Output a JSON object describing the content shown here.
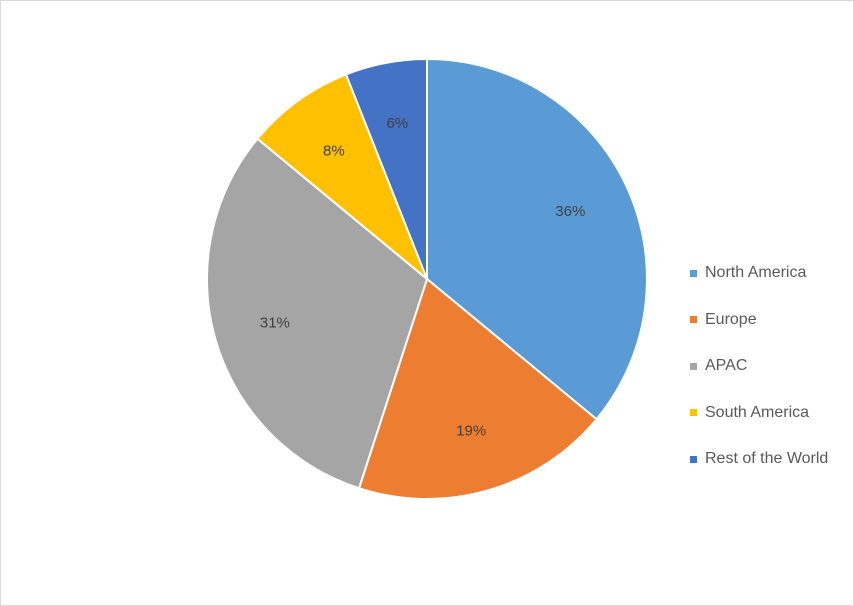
{
  "chart_data": {
    "type": "pie",
    "title": "",
    "categories": [
      "North America",
      "Europe",
      "APAC",
      "South America",
      "Rest of the World"
    ],
    "values": [
      36,
      19,
      31,
      8,
      6
    ],
    "data_labels": [
      "36%",
      "19%",
      "31%",
      "8%",
      "6%"
    ],
    "colors": [
      "#5B9BD5",
      "#ED7D31",
      "#A5A5A5",
      "#FFC000",
      "#4472C4"
    ],
    "legend_placement": "right",
    "start_angle": "12 o'clock",
    "direction": "clockwise"
  }
}
